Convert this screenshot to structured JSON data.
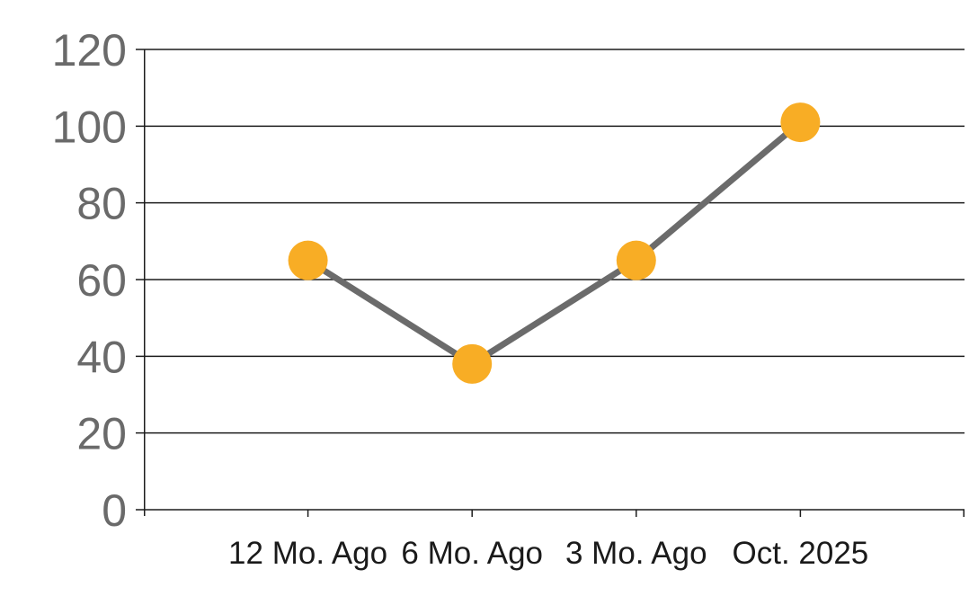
{
  "chart_data": {
    "type": "line",
    "categories": [
      "12 Mo. Ago",
      "6 Mo. Ago",
      "3 Mo. Ago",
      "Oct. 2025"
    ],
    "values": [
      65,
      38,
      65,
      101
    ],
    "title": "",
    "xlabel": "",
    "ylabel": "",
    "ylim": [
      0,
      120
    ],
    "yticks": [
      0,
      20,
      40,
      60,
      80,
      100,
      120
    ],
    "grid": true,
    "legend": false,
    "layout_hints": {
      "gridlines": "horizontal full-width, tick overhang left of y-axis",
      "x_ticks": "short downward ticks at category centers and right axis end",
      "marker_style": "filled circle"
    },
    "colors": {
      "marker": "#F8AD25",
      "line": "#6B6B6B",
      "axis": "#1C1C1C",
      "ytick_label": "#6A6A6A",
      "xtick_label": "#1A1A1A",
      "background": "#FFFFFF"
    }
  }
}
